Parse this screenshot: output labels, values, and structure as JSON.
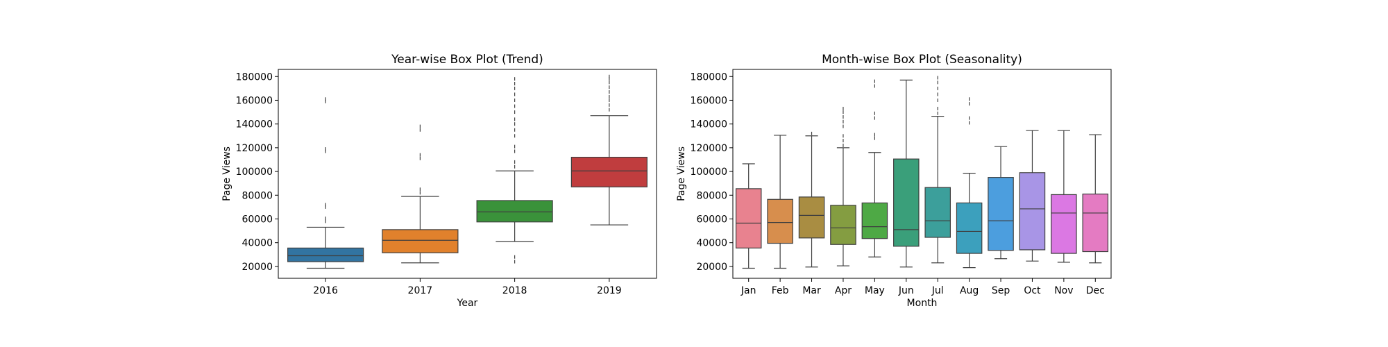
{
  "chart_data": [
    {
      "type": "box",
      "title": "Year-wise Box Plot (Trend)",
      "xlabel": "Year",
      "ylabel": "Page Views",
      "ylim": [
        10000,
        186000
      ],
      "yticks": [
        20000,
        40000,
        60000,
        80000,
        100000,
        120000,
        140000,
        160000,
        180000
      ],
      "grid": false,
      "categories": [
        "2016",
        "2017",
        "2018",
        "2019"
      ],
      "colors": [
        "#3274a1",
        "#e1812c",
        "#3a923a",
        "#c03d3e"
      ],
      "boxes": [
        {
          "whislo": 18500,
          "q1": 24000,
          "med": 29000,
          "q3": 35500,
          "whishi": 53000,
          "fliers": [
            58000,
            60500,
            70000,
            72000,
            117000,
            119000,
            159000,
            161000
          ]
        },
        {
          "whislo": 23000,
          "q1": 31500,
          "med": 42000,
          "q3": 51000,
          "whishi": 79000,
          "fliers": [
            82000,
            85000,
            111000,
            114000,
            135000,
            138000
          ]
        },
        {
          "whislo": 41000,
          "q1": 57500,
          "med": 66000,
          "q3": 75500,
          "whishi": 100500,
          "fliers": [
            24000,
            28000,
            104000,
            108000,
            117000,
            121000,
            130000,
            135000,
            140000,
            144000,
            150000,
            155000,
            160000,
            165000,
            170000,
            174000,
            178000
          ]
        },
        {
          "whislo": 55000,
          "q1": 87000,
          "med": 100500,
          "q3": 112000,
          "whishi": 147000,
          "fliers": [
            152000,
            156000,
            160000,
            163000,
            167000,
            171000,
            175000,
            178000,
            180000
          ]
        }
      ]
    },
    {
      "type": "box",
      "title": "Month-wise Box Plot (Seasonality)",
      "xlabel": "Month",
      "ylabel": "Page Views",
      "ylim": [
        10000,
        186000
      ],
      "yticks": [
        20000,
        40000,
        60000,
        80000,
        100000,
        120000,
        140000,
        160000,
        180000
      ],
      "grid": false,
      "categories": [
        "Jan",
        "Feb",
        "Mar",
        "Apr",
        "May",
        "Jun",
        "Jul",
        "Aug",
        "Sep",
        "Oct",
        "Nov",
        "Dec"
      ],
      "colors": [
        "#e8828f",
        "#d78e4d",
        "#a98d42",
        "#849d41",
        "#4ea945",
        "#3a9f7a",
        "#3c9f9b",
        "#3ca0bd",
        "#4c9ede",
        "#a895e6",
        "#db78e3",
        "#e47bc2"
      ],
      "boxes": [
        {
          "whislo": 18500,
          "q1": 35500,
          "med": 56500,
          "q3": 85500,
          "whishi": 106500,
          "fliers": []
        },
        {
          "whislo": 18500,
          "q1": 39500,
          "med": 57000,
          "q3": 76500,
          "whishi": 130500,
          "fliers": []
        },
        {
          "whislo": 19500,
          "q1": 44000,
          "med": 63000,
          "q3": 78500,
          "whishi": 130000,
          "fliers": [
            132000
          ]
        },
        {
          "whislo": 20500,
          "q1": 38500,
          "med": 52500,
          "q3": 71500,
          "whishi": 120000,
          "fliers": [
            122000,
            126000,
            130000,
            138000,
            142000,
            146000,
            150000,
            153000
          ]
        },
        {
          "whislo": 28000,
          "q1": 43500,
          "med": 53500,
          "q3": 73500,
          "whishi": 116000,
          "fliers": [
            128000,
            131000,
            145000,
            149000,
            172000,
            176000
          ]
        },
        {
          "whislo": 19500,
          "q1": 37000,
          "med": 51000,
          "q3": 110500,
          "whishi": 177000,
          "fliers": []
        },
        {
          "whislo": 23000,
          "q1": 44500,
          "med": 58500,
          "q3": 86500,
          "whishi": 146500,
          "fliers": [
            149000,
            153000,
            160000,
            165000,
            170000,
            175000,
            179000
          ]
        },
        {
          "whislo": 19000,
          "q1": 31000,
          "med": 49500,
          "q3": 73500,
          "whishi": 98500,
          "fliers": [
            141000,
            145000,
            157000,
            161000
          ]
        },
        {
          "whislo": 26500,
          "q1": 33500,
          "med": 58500,
          "q3": 95000,
          "whishi": 121000,
          "fliers": []
        },
        {
          "whislo": 24500,
          "q1": 34000,
          "med": 68500,
          "q3": 99000,
          "whishi": 134500,
          "fliers": []
        },
        {
          "whislo": 23500,
          "q1": 31000,
          "med": 65000,
          "q3": 80500,
          "whishi": 134500,
          "fliers": []
        },
        {
          "whislo": 23000,
          "q1": 32500,
          "med": 65000,
          "q3": 81000,
          "whishi": 131000,
          "fliers": []
        }
      ]
    }
  ]
}
